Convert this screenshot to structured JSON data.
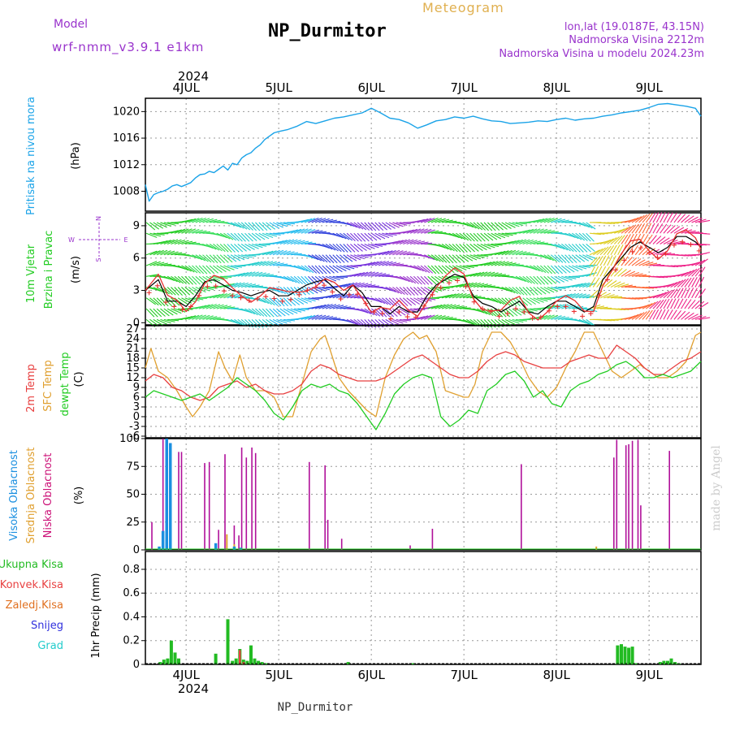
{
  "header": {
    "model_label": "Model",
    "model_name": "wrf-nmm_v3.9.1 e1km",
    "station": "NP_Durmitor",
    "product": "Meteogram",
    "lonlat": "lon,lat (19.0187E, 43.15N)",
    "elevation": "Nadmorska Visina 2212m",
    "model_elevation": "Nadmorska Visina u modelu 2024.23m"
  },
  "footer": {
    "station": "NP_Durmitor",
    "watermark": "made by Angel"
  },
  "time_axis": {
    "year": "2024",
    "day_labels": [
      "4JUL",
      "5JUL",
      "6JUL",
      "7JUL",
      "8JUL",
      "9JUL"
    ],
    "day_positions": [
      4,
      5,
      6,
      7,
      8,
      9
    ],
    "range": [
      3.56,
      9.56
    ]
  },
  "panels": {
    "pressure": {
      "ylabel": "Pritisak na nivou mora",
      "unit": "(hPa)",
      "ticks": [
        "1008",
        "1012",
        "1016",
        "1020"
      ]
    },
    "wind": {
      "ylabel_1": "10m Vjetar",
      "ylabel_2": "Brzina i Pravac",
      "unit": "(m/s)",
      "ticks": [
        "0",
        "3",
        "6",
        "9"
      ],
      "compass": {
        "n": "N",
        "s": "S",
        "e": "E",
        "w": "W"
      }
    },
    "temp": {
      "label_2m": "2m Temp",
      "label_sfc": "SFC Temp",
      "label_dew": "dewpt Temp",
      "unit": "(C)",
      "ticks": [
        "-6",
        "-3",
        "0",
        "3",
        "6",
        "9",
        "12",
        "15",
        "18",
        "21",
        "24",
        "27"
      ]
    },
    "cloud": {
      "label_high": "Visoka Oblacnost",
      "label_mid": "Srednja Oblacnost",
      "label_low": "Niska Oblacnost",
      "unit": "(%)",
      "ticks": [
        "0",
        "25",
        "50",
        "75",
        "100"
      ]
    },
    "precip": {
      "label_total": "Ukupna Kisa",
      "label_conv": "Konvek.Kisa",
      "label_frz": "Zaledj.Kisa",
      "label_snow": "Snijeg",
      "label_hail": "Grad",
      "ylabel": "1hr Precip (mm)",
      "ticks": [
        "0",
        "0.2",
        "0.4",
        "0.6",
        "0.8"
      ]
    }
  },
  "colors": {
    "pressure": "#1aa3e8",
    "wind_red": "#e83030",
    "wind_black": "#000000",
    "temp_2m": "#e84040",
    "temp_sfc": "#e0a030",
    "temp_dew": "#22cc22",
    "cloud_high": "#1a8fe0",
    "cloud_mid": "#e0a030",
    "cloud_low": "#b0109a",
    "precip_total": "#22bb22",
    "precip_conv": "#e84040",
    "precip_frz": "#e07020",
    "precip_snow": "#3030dd",
    "precip_hail": "#22cccc",
    "label_purple": "#9933cc",
    "label_orange": "#e0b050"
  },
  "chart_data": [
    {
      "type": "line",
      "title": "",
      "ylabel": "Pritisak na nivou mora (hPa)",
      "ylim": [
        1005,
        1022
      ],
      "grid": true,
      "series": [
        {
          "name": "Pritisak na nivou mora",
          "x": [
            3.56,
            3.6,
            3.65,
            3.7,
            3.75,
            3.8,
            3.85,
            3.9,
            3.95,
            4.0,
            4.05,
            4.1,
            4.15,
            4.2,
            4.25,
            4.3,
            4.35,
            4.4,
            4.45,
            4.5,
            4.55,
            4.6,
            4.65,
            4.7,
            4.75,
            4.8,
            4.85,
            4.9,
            4.95,
            5.0,
            5.1,
            5.2,
            5.3,
            5.4,
            5.5,
            5.6,
            5.7,
            5.8,
            5.9,
            6.0,
            6.1,
            6.2,
            6.3,
            6.4,
            6.5,
            6.6,
            6.7,
            6.8,
            6.9,
            7.0,
            7.1,
            7.2,
            7.3,
            7.4,
            7.5,
            7.6,
            7.7,
            7.8,
            7.9,
            8.0,
            8.1,
            8.2,
            8.3,
            8.4,
            8.5,
            8.6,
            8.7,
            8.8,
            8.9,
            9.0,
            9.1,
            9.2,
            9.3,
            9.4,
            9.5,
            9.56
          ],
          "values": [
            1009,
            1006.5,
            1007.5,
            1007.8,
            1008,
            1008.3,
            1008.8,
            1009,
            1008.7,
            1009,
            1009.3,
            1010,
            1010.5,
            1010.6,
            1011,
            1010.8,
            1011.3,
            1011.8,
            1011.2,
            1012.2,
            1012,
            1013,
            1013.5,
            1013.8,
            1014.5,
            1015,
            1015.8,
            1016.3,
            1016.8,
            1017,
            1017.3,
            1017.8,
            1018.5,
            1018.2,
            1018.6,
            1019,
            1019.2,
            1019.5,
            1019.8,
            1020.5,
            1019.8,
            1019,
            1018.8,
            1018.3,
            1017.5,
            1018,
            1018.6,
            1018.8,
            1019.2,
            1019,
            1019.3,
            1018.9,
            1018.6,
            1018.5,
            1018.2,
            1018.3,
            1018.4,
            1018.6,
            1018.5,
            1018.8,
            1019,
            1018.7,
            1018.9,
            1019,
            1019.3,
            1019.5,
            1019.8,
            1020,
            1020.2,
            1020.6,
            1021.1,
            1021.2,
            1021,
            1020.8,
            1020.5,
            1019.3
          ]
        }
      ]
    },
    {
      "type": "line",
      "title": "",
      "ylabel": "10m Vjetar Brzina i Pravac (m/s)",
      "ylim": [
        -0.2,
        10.2
      ],
      "grid": true,
      "series": [
        {
          "name": "10m Vjetar",
          "x": [
            3.56,
            3.7,
            3.8,
            3.9,
            4.0,
            4.1,
            4.2,
            4.3,
            4.4,
            4.5,
            4.6,
            4.7,
            4.8,
            4.9,
            5.0,
            5.1,
            5.2,
            5.3,
            5.4,
            5.5,
            5.6,
            5.7,
            5.8,
            5.9,
            6.0,
            6.1,
            6.2,
            6.3,
            6.4,
            6.5,
            6.6,
            6.7,
            6.8,
            6.9,
            7.0,
            7.1,
            7.2,
            7.3,
            7.4,
            7.5,
            7.6,
            7.7,
            7.8,
            7.9,
            8.0,
            8.1,
            8.2,
            8.3,
            8.4,
            8.5,
            8.6,
            8.7,
            8.8,
            8.9,
            9.0,
            9.1,
            9.2,
            9.3,
            9.4,
            9.5,
            9.56
          ],
          "values": [
            3,
            4,
            2,
            2,
            1.5,
            2.5,
            3.8,
            4,
            3.5,
            3,
            2.8,
            2.5,
            2.8,
            3,
            2.5,
            2.5,
            3,
            3.5,
            3.8,
            4,
            3.2,
            2.5,
            3.5,
            2.8,
            1.5,
            1.5,
            0.8,
            1.5,
            1,
            1,
            2.5,
            3.5,
            4,
            4.5,
            4.2,
            2.5,
            1.8,
            1.5,
            1,
            1.5,
            2,
            1,
            0.8,
            1.5,
            2,
            2,
            1.5,
            1,
            1.5,
            4,
            5,
            6,
            7,
            7.5,
            7,
            6.5,
            7,
            8,
            8,
            7.5,
            7
          ]
        }
      ]
    },
    {
      "type": "line",
      "title": "",
      "ylabel": "(C)",
      "ylim": [
        -6.5,
        28
      ],
      "grid": true,
      "series": [
        {
          "name": "2m Temp",
          "x": [
            3.56,
            3.65,
            3.75,
            3.85,
            3.95,
            4.05,
            4.15,
            4.25,
            4.35,
            4.45,
            4.55,
            4.65,
            4.75,
            4.85,
            4.95,
            5.05,
            5.15,
            5.25,
            5.35,
            5.45,
            5.55,
            5.65,
            5.75,
            5.85,
            5.95,
            6.05,
            6.15,
            6.25,
            6.35,
            6.45,
            6.55,
            6.65,
            6.75,
            6.85,
            6.95,
            7.05,
            7.15,
            7.25,
            7.35,
            7.45,
            7.55,
            7.65,
            7.75,
            7.85,
            7.95,
            8.05,
            8.15,
            8.25,
            8.35,
            8.45,
            8.55,
            8.65,
            8.75,
            8.85,
            8.95,
            9.05,
            9.15,
            9.25,
            9.35,
            9.45,
            9.56
          ],
          "values": [
            11,
            13,
            12,
            9,
            8,
            6,
            5,
            6,
            9,
            10,
            11,
            9,
            10,
            8,
            7,
            7,
            8,
            10,
            14,
            16,
            15,
            13,
            12,
            11,
            11,
            11,
            12,
            14,
            16,
            18,
            19,
            17,
            15,
            13,
            12,
            12,
            14,
            17,
            19,
            20,
            19,
            17,
            16,
            15,
            15,
            15,
            17,
            18,
            19,
            18,
            18,
            22,
            20,
            18,
            15,
            13,
            13,
            15,
            17,
            18,
            20
          ]
        },
        {
          "name": "SFC Temp",
          "x": [
            3.56,
            3.62,
            3.7,
            3.8,
            3.9,
            4.0,
            4.07,
            4.15,
            4.25,
            4.35,
            4.42,
            4.5,
            4.58,
            4.65,
            4.75,
            4.85,
            4.95,
            5.05,
            5.15,
            5.25,
            5.35,
            5.45,
            5.5,
            5.55,
            5.65,
            5.75,
            5.85,
            5.95,
            6.05,
            6.15,
            6.25,
            6.35,
            6.45,
            6.52,
            6.6,
            6.7,
            6.8,
            6.9,
            7.0,
            7.05,
            7.12,
            7.2,
            7.3,
            7.4,
            7.5,
            7.6,
            7.7,
            7.8,
            7.9,
            8.0,
            8.1,
            8.2,
            8.3,
            8.4,
            8.5,
            8.6,
            8.7,
            8.8,
            8.9,
            9.0,
            9.1,
            9.2,
            9.3,
            9.4,
            9.5,
            9.56
          ],
          "values": [
            15,
            21,
            14,
            12,
            8,
            3,
            0,
            3,
            8,
            20,
            15,
            11,
            19,
            12,
            8,
            8,
            6,
            0,
            0,
            10,
            20,
            24,
            25,
            21,
            12,
            8,
            5,
            2,
            0,
            12,
            19,
            24,
            26,
            24,
            25,
            20,
            8,
            7,
            6,
            6,
            10,
            20,
            26,
            26,
            23,
            18,
            12,
            8,
            6,
            9,
            15,
            20,
            26,
            26,
            20,
            14,
            12,
            14,
            16,
            14,
            12,
            12,
            14,
            17,
            25,
            26
          ]
        },
        {
          "name": "dewpt Temp",
          "x": [
            3.56,
            3.65,
            3.75,
            3.85,
            3.95,
            4.05,
            4.15,
            4.25,
            4.35,
            4.45,
            4.55,
            4.65,
            4.75,
            4.85,
            4.95,
            5.05,
            5.15,
            5.25,
            5.35,
            5.45,
            5.55,
            5.65,
            5.75,
            5.85,
            5.95,
            6.05,
            6.15,
            6.25,
            6.35,
            6.45,
            6.55,
            6.65,
            6.75,
            6.85,
            6.95,
            7.05,
            7.15,
            7.25,
            7.35,
            7.45,
            7.55,
            7.65,
            7.75,
            7.85,
            7.95,
            8.05,
            8.15,
            8.25,
            8.35,
            8.45,
            8.55,
            8.65,
            8.75,
            8.85,
            8.95,
            9.05,
            9.15,
            9.25,
            9.35,
            9.45,
            9.56
          ],
          "values": [
            6,
            8,
            7,
            6,
            5,
            6,
            7,
            5,
            7,
            9,
            12,
            10,
            8,
            5,
            1,
            -1,
            3,
            8,
            10,
            9,
            10,
            8,
            7,
            4,
            0,
            -4,
            1,
            7,
            10,
            12,
            13,
            12,
            0,
            -3,
            -1,
            2,
            1,
            8,
            10,
            13,
            14,
            11,
            6,
            8,
            4,
            3,
            8,
            10,
            11,
            13,
            14,
            16,
            17,
            15,
            12,
            12,
            13,
            12,
            13,
            14,
            17
          ]
        }
      ]
    },
    {
      "type": "bar",
      "title": "",
      "ylabel": "(%)",
      "ylim": [
        0,
        100
      ],
      "grid": true,
      "series": [
        {
          "name": "Visoka Oblacnost",
          "x": [
            3.71,
            3.75,
            3.79,
            3.83,
            4.32,
            4.52,
            4.59
          ],
          "values": [
            3,
            17,
            100,
            96,
            6,
            3,
            2
          ]
        },
        {
          "name": "Srednja Oblacnost",
          "x": [
            4.44,
            4.52,
            8.43
          ],
          "values": [
            14,
            5,
            3
          ]
        },
        {
          "name": "Niska Oblacnost",
          "x": [
            3.63,
            3.75,
            3.79,
            3.83,
            3.92,
            3.95,
            4.2,
            4.25,
            4.35,
            4.42,
            4.52,
            4.57,
            4.6,
            4.65,
            4.71,
            4.75,
            5.33,
            5.5,
            5.53,
            5.68,
            6.42,
            6.66,
            7.62,
            8.62,
            8.65,
            8.75,
            8.78,
            8.82,
            8.88,
            8.91,
            9.22
          ],
          "values": [
            25,
            100,
            98,
            95,
            88,
            88,
            78,
            79,
            18,
            86,
            22,
            13,
            92,
            83,
            92,
            87,
            79,
            76,
            27,
            10,
            4,
            19,
            77,
            83,
            99,
            94,
            95,
            98,
            99,
            40,
            89
          ]
        }
      ]
    },
    {
      "type": "bar",
      "title": "",
      "ylabel": "1hr Precip (mm)",
      "ylim": [
        0,
        0.95
      ],
      "grid": true,
      "series": [
        {
          "name": "Ukupna Kisa",
          "x": [
            3.72,
            3.76,
            3.8,
            3.84,
            3.88,
            3.92,
            4.32,
            4.45,
            4.5,
            4.54,
            4.58,
            4.62,
            4.66,
            4.7,
            4.74,
            4.78,
            4.82,
            4.86,
            5.75,
            6.45,
            8.66,
            8.7,
            8.74,
            8.78,
            8.82,
            8.86,
            9.12,
            9.16,
            9.2,
            9.24,
            9.28,
            9.32
          ],
          "values": [
            0.02,
            0.04,
            0.05,
            0.2,
            0.1,
            0.05,
            0.09,
            0.38,
            0.03,
            0.05,
            0.13,
            0.04,
            0.03,
            0.16,
            0.05,
            0.03,
            0.02,
            0.01,
            0.02,
            0.01,
            0.16,
            0.17,
            0.15,
            0.14,
            0.15,
            0.01,
            0.02,
            0.03,
            0.03,
            0.05,
            0.02,
            0.01
          ]
        },
        {
          "name": "Konvek.Kisa",
          "x": [
            4.58,
            4.62
          ],
          "values": [
            0.12,
            0.02
          ]
        },
        {
          "name": "Zaledj.Kisa",
          "x": [],
          "values": []
        },
        {
          "name": "Snijeg",
          "x": [],
          "values": []
        },
        {
          "name": "Grad",
          "x": [],
          "values": []
        }
      ]
    }
  ]
}
